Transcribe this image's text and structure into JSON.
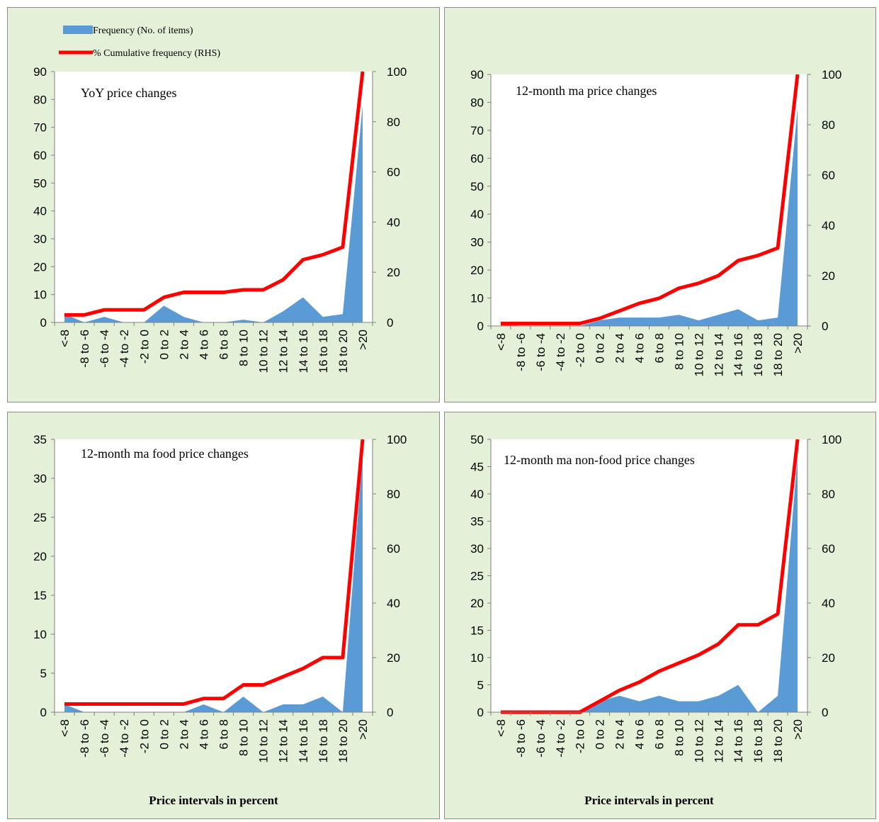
{
  "legend": {
    "frequency_label": "Frequency (No. of items)",
    "cumulative_label": "% Cumulative frequency (RHS)"
  },
  "colors": {
    "panel_bg": "#e4f0d8",
    "area": "#5b9bd5",
    "line": "#ff0000",
    "plot_bg": "#ffffff"
  },
  "chart_data": [
    {
      "type": "area",
      "title": "YoY price changes",
      "xlabel": "",
      "categories": [
        "<-8",
        "-8 to -6",
        "-6 to -4",
        "-4 to -2",
        "-2 to 0",
        "0 to 2",
        "2 to 4",
        "4 to 6",
        "6 to 8",
        "8 to 10",
        "10 to 12",
        "12 to 14",
        "14 to 16",
        "16 to 18",
        "18 to 20",
        ">20"
      ],
      "series": [
        {
          "name": "Frequency (No. of items)",
          "axis": "left",
          "values": [
            3,
            0,
            2,
            0,
            0,
            6,
            2,
            0,
            0,
            1,
            0,
            4,
            9,
            2,
            3,
            78
          ]
        },
        {
          "name": "% Cumulative frequency (RHS)",
          "axis": "right",
          "type": "line",
          "values": [
            3,
            3,
            5,
            5,
            5,
            10,
            12,
            12,
            12,
            13,
            13,
            17,
            25,
            27,
            30,
            100
          ]
        }
      ],
      "ylim_left": [
        0,
        90
      ],
      "yticks_left": [
        0,
        10,
        20,
        30,
        40,
        50,
        60,
        70,
        80,
        90
      ],
      "ylim_right": [
        0,
        100
      ],
      "yticks_right": [
        0,
        20,
        40,
        60,
        80,
        100
      ]
    },
    {
      "type": "area",
      "title": "12-month ma price changes",
      "xlabel": "",
      "categories": [
        "<-8",
        "-8 to -6",
        "-6 to -4",
        "-4 to -2",
        "-2 to 0",
        "0 to 2",
        "2 to 4",
        "4 to 6",
        "6 to 8",
        "8 to 10",
        "10 to 12",
        "12 to 14",
        "14 to 16",
        "16 to 18",
        "18 to 20",
        ">20"
      ],
      "series": [
        {
          "name": "Frequency (No. of items)",
          "axis": "left",
          "values": [
            1,
            0,
            0,
            0,
            0,
            2,
            3,
            3,
            3,
            4,
            2,
            4,
            6,
            2,
            3,
            78
          ]
        },
        {
          "name": "% Cumulative frequency (RHS)",
          "axis": "right",
          "type": "line",
          "values": [
            1,
            1,
            1,
            1,
            1,
            3,
            6,
            9,
            11,
            15,
            17,
            20,
            26,
            28,
            31,
            100
          ]
        }
      ],
      "ylim_left": [
        0,
        90
      ],
      "yticks_left": [
        0,
        10,
        20,
        30,
        40,
        50,
        60,
        70,
        80,
        90
      ],
      "ylim_right": [
        0,
        100
      ],
      "yticks_right": [
        0,
        20,
        40,
        60,
        80,
        100
      ]
    },
    {
      "type": "area",
      "title": "12-month ma food price changes",
      "xlabel": "Price intervals in percent",
      "categories": [
        "<-8",
        "-8 to -6",
        "-6 to -4",
        "-4 to -2",
        "-2 to 0",
        "0 to 2",
        "2 to 4",
        "4 to 6",
        "6 to 8",
        "8 to 10",
        "10 to 12",
        "12 to 14",
        "14 to 16",
        "16 to 18",
        "18 to 20",
        ">20"
      ],
      "series": [
        {
          "name": "Frequency (No. of items)",
          "axis": "left",
          "values": [
            1,
            0,
            0,
            0,
            0,
            0,
            0,
            1,
            0,
            2,
            0,
            1,
            1,
            2,
            0,
            33
          ]
        },
        {
          "name": "% Cumulative frequency (RHS)",
          "axis": "right",
          "type": "line",
          "values": [
            3,
            3,
            3,
            3,
            3,
            3,
            3,
            5,
            5,
            10,
            10,
            13,
            16,
            20,
            20,
            100
          ]
        }
      ],
      "ylim_left": [
        0,
        35
      ],
      "yticks_left": [
        0,
        5,
        10,
        15,
        20,
        25,
        30,
        35
      ],
      "ylim_right": [
        0,
        100
      ],
      "yticks_right": [
        0,
        20,
        40,
        60,
        80,
        100
      ]
    },
    {
      "type": "area",
      "title": "12-month ma non-food price changes",
      "xlabel": "Price intervals in percent",
      "categories": [
        "<-8",
        "-8 to -6",
        "-6 to -4",
        "-4 to -2",
        "-2 to 0",
        "0 to 2",
        "2 to 4",
        "4 to 6",
        "6 to 8",
        "8 to 10",
        "10 to 12",
        "12 to 14",
        "14 to 16",
        "16 to 18",
        "18 to 20",
        ">20"
      ],
      "series": [
        {
          "name": "Frequency (No. of items)",
          "axis": "left",
          "values": [
            0,
            0,
            0,
            0,
            0,
            2,
            3,
            2,
            3,
            2,
            2,
            3,
            5,
            0,
            3,
            47
          ]
        },
        {
          "name": "% Cumulative frequency (RHS)",
          "axis": "right",
          "type": "line",
          "values": [
            0,
            0,
            0,
            0,
            0,
            4,
            8,
            11,
            15,
            18,
            21,
            25,
            32,
            32,
            36,
            100
          ]
        }
      ],
      "ylim_left": [
        0,
        50
      ],
      "yticks_left": [
        0,
        5,
        10,
        15,
        20,
        25,
        30,
        35,
        40,
        45,
        50
      ],
      "ylim_right": [
        0,
        100
      ],
      "yticks_right": [
        0,
        20,
        40,
        60,
        80,
        100
      ]
    }
  ]
}
